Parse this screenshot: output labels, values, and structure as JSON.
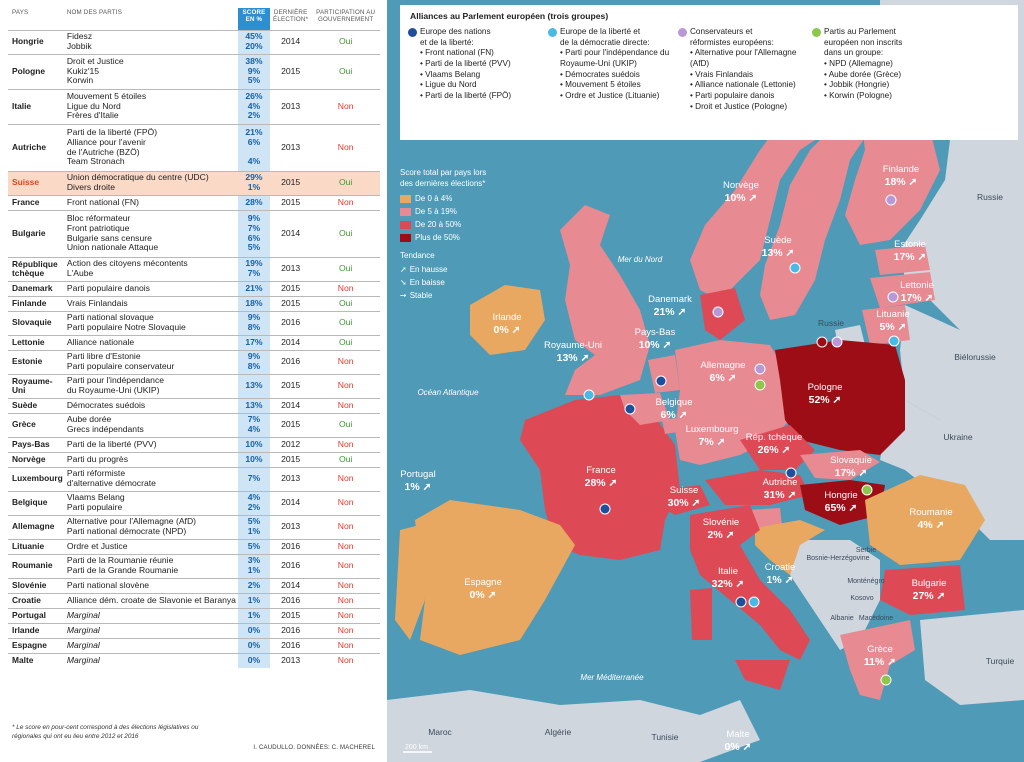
{
  "table": {
    "headers": {
      "pays": "PAYS",
      "partis": "NOM DES PARTIS",
      "score": "SCORE EN %",
      "election": "DERNIÈRE ÉLECTION*",
      "gouv": "PARTICIPATION AU GOUVERNEMENT"
    },
    "rows": [
      {
        "pays": "Hongrie",
        "partis": [
          "Fidesz",
          "Jobbik"
        ],
        "scores": [
          "45%",
          "20%"
        ],
        "annee": "2014",
        "gouv": "Oui",
        "h": 24
      },
      {
        "pays": "Pologne",
        "partis": [
          "Droit et Justice",
          "Kukiz'15",
          "Korwin"
        ],
        "scores": [
          "38%",
          "9%",
          "5%"
        ],
        "annee": "2015",
        "gouv": "Oui",
        "h": 35
      },
      {
        "pays": "Italie",
        "partis": [
          "Mouvement 5 étoiles",
          "Ligue du Nord",
          "Frères d'Italie"
        ],
        "scores": [
          "26%",
          "4%",
          "2%"
        ],
        "annee": "2013",
        "gouv": "Non",
        "h": 35
      },
      {
        "pays": "Autriche",
        "partis": [
          "Parti de la liberté (FPÖ)",
          "Alliance pour l'avenir",
          "de l'Autriche (BZÖ)",
          "Team Stronach"
        ],
        "scores": [
          "21%",
          "6%",
          "",
          "4%"
        ],
        "annee": "2013",
        "gouv": "Non",
        "h": 47
      },
      {
        "pays": "Suisse",
        "partis": [
          "Union démocratique du centre (UDC)",
          "Divers droite"
        ],
        "scores": [
          "29%",
          "1%"
        ],
        "annee": "2015",
        "gouv": "Oui",
        "h": 24,
        "hl": true
      },
      {
        "pays": "France",
        "partis": [
          "Front national (FN)"
        ],
        "scores": [
          "28%"
        ],
        "annee": "2015",
        "gouv": "Non",
        "h": 15
      },
      {
        "pays": "Bulgarie",
        "partis": [
          "Bloc réformateur",
          "Front patriotique",
          "Bulgarie sans censure",
          "Union nationale Attaque"
        ],
        "scores": [
          "9%",
          "7%",
          "6%",
          "5%"
        ],
        "annee": "2014",
        "gouv": "Oui",
        "h": 47
      },
      {
        "pays": "République tchèque",
        "partis": [
          "Action des citoyens mécontents",
          "L'Aube"
        ],
        "scores": [
          "19%",
          "7%"
        ],
        "annee": "2013",
        "gouv": "Oui",
        "h": 24
      },
      {
        "pays": "Danemark",
        "partis": [
          "Parti populaire danois"
        ],
        "scores": [
          "21%"
        ],
        "annee": "2015",
        "gouv": "Non",
        "h": 15
      },
      {
        "pays": "Finlande",
        "partis": [
          "Vrais Finlandais"
        ],
        "scores": [
          "18%"
        ],
        "annee": "2015",
        "gouv": "Oui",
        "h": 15
      },
      {
        "pays": "Slovaquie",
        "partis": [
          "Parti national slovaque",
          "Parti populaire Notre Slovaquie"
        ],
        "scores": [
          "9%",
          "8%"
        ],
        "annee": "2016",
        "gouv": "Oui",
        "h": 24
      },
      {
        "pays": "Lettonie",
        "partis": [
          "Alliance nationale"
        ],
        "scores": [
          "17%"
        ],
        "annee": "2014",
        "gouv": "Oui",
        "h": 15
      },
      {
        "pays": "Estonie",
        "partis": [
          "Parti libre d'Estonie",
          "Parti populaire conservateur"
        ],
        "scores": [
          "9%",
          "8%"
        ],
        "annee": "2016",
        "gouv": "Non",
        "h": 24
      },
      {
        "pays": "Royaume-Uni",
        "partis": [
          "Parti pour l'indépendance",
          "du Royaume-Uni (UKIP)"
        ],
        "scores": [
          "13%"
        ],
        "annee": "2015",
        "gouv": "Non",
        "h": 24
      },
      {
        "pays": "Suède",
        "partis": [
          "Démocrates suédois"
        ],
        "scores": [
          "13%"
        ],
        "annee": "2014",
        "gouv": "Non",
        "h": 15
      },
      {
        "pays": "Grèce",
        "partis": [
          "Aube dorée",
          "Grecs indépendants"
        ],
        "scores": [
          "7%",
          "4%"
        ],
        "annee": "2015",
        "gouv": "Oui",
        "h": 24
      },
      {
        "pays": "Pays-Bas",
        "partis": [
          "Parti de la liberté (PVV)"
        ],
        "scores": [
          "10%"
        ],
        "annee": "2012",
        "gouv": "Non",
        "h": 15
      },
      {
        "pays": "Norvège",
        "partis": [
          "Parti du progrès"
        ],
        "scores": [
          "10%"
        ],
        "annee": "2015",
        "gouv": "Oui",
        "h": 15
      },
      {
        "pays": "Luxembourg",
        "partis": [
          "Parti réformiste",
          "d'alternative démocrate"
        ],
        "scores": [
          "7%"
        ],
        "annee": "2013",
        "gouv": "Non",
        "h": 24
      },
      {
        "pays": "Belgique",
        "partis": [
          "Vlaams Belang",
          "Parti populaire"
        ],
        "scores": [
          "4%",
          "2%"
        ],
        "annee": "2014",
        "gouv": "Non",
        "h": 24
      },
      {
        "pays": "Allemagne",
        "partis": [
          "Alternative pour l'Allemagne (AfD)",
          "Parti national démocrate (NPD)"
        ],
        "scores": [
          "5%",
          "1%"
        ],
        "annee": "2013",
        "gouv": "Non",
        "h": 24
      },
      {
        "pays": "Lituanie",
        "partis": [
          "Ordre et Justice"
        ],
        "scores": [
          "5%"
        ],
        "annee": "2016",
        "gouv": "Non",
        "h": 15
      },
      {
        "pays": "Roumanie",
        "partis": [
          "Parti de la Roumanie réunie",
          "Parti de la Grande Roumanie"
        ],
        "scores": [
          "3%",
          "1%"
        ],
        "annee": "2016",
        "gouv": "Non",
        "h": 24
      },
      {
        "pays": "Slovénie",
        "partis": [
          "Parti national slovène"
        ],
        "scores": [
          "2%"
        ],
        "annee": "2014",
        "gouv": "Non",
        "h": 15
      },
      {
        "pays": "Croatie",
        "partis": [
          "Alliance dém. croate de Slavonie et Baranya"
        ],
        "scores": [
          "1%"
        ],
        "annee": "2016",
        "gouv": "Non",
        "h": 15
      },
      {
        "pays": "Portugal",
        "partis": [
          "Marginal"
        ],
        "scores": [
          "1%"
        ],
        "annee": "2015",
        "gouv": "Non",
        "h": 15,
        "marg": true
      },
      {
        "pays": "Irlande",
        "partis": [
          "Marginal"
        ],
        "scores": [
          "0%"
        ],
        "annee": "2016",
        "gouv": "Non",
        "h": 15,
        "marg": true
      },
      {
        "pays": "Espagne",
        "partis": [
          "Marginal"
        ],
        "scores": [
          "0%"
        ],
        "annee": "2016",
        "gouv": "Non",
        "h": 15,
        "marg": true
      },
      {
        "pays": "Malte",
        "partis": [
          "Marginal"
        ],
        "scores": [
          "0%"
        ],
        "annee": "2013",
        "gouv": "Non",
        "h": 15,
        "marg": true
      }
    ]
  },
  "footnote": "* Le score en pour-cent correspond à des élections législatives ou régionales qui ont eu lieu entre 2012 et 2016",
  "credit": "I. CAUDULLO. DONNÉES: C. MACHEREL",
  "legend": {
    "title": "Alliances au Parlement européen (trois groupes)",
    "groups": [
      {
        "title": [
          "Europe des nations",
          "et de la liberté:"
        ],
        "color": "#1e4f9c",
        "items": [
          "Front national (FN)",
          "Parti de la liberté (PVV)",
          "Vlaams Belang",
          "Ligue du Nord",
          "Parti de la liberté (FPÖ)"
        ]
      },
      {
        "title": [
          "Europe de la liberté et",
          "de la démocratie directe:"
        ],
        "color": "#49b9e6",
        "items": [
          "Parti pour l'indépendance du Royaume-Uni (UKIP)",
          "Démocrates suédois",
          "Mouvement 5 étoiles",
          "Ordre et Justice (Lituanie)"
        ]
      },
      {
        "title": [
          "Conservateurs et",
          "réformistes européens:"
        ],
        "color": "#b899d6",
        "items": [
          "Alternative pour l'Allemagne (AfD)",
          "Vrais Finlandais",
          "Alliance nationale (Lettonie)",
          "Parti populaire danois",
          "Droit et Justice (Pologne)"
        ]
      },
      {
        "title": [
          "Partis au Parlement",
          "européen non inscrits",
          "dans un groupe:"
        ],
        "color": "#8cc74a",
        "items": [
          "NPD (Allemagne)",
          "Aube dorée (Grèce)",
          "Jobbik (Hongrie)",
          "Korwin (Pologne)"
        ]
      }
    ],
    "score_title": [
      "Score total par pays lors",
      "des dernières élections*"
    ],
    "score_classes": [
      {
        "label": "De 0 à 4%",
        "color": "#e8a861"
      },
      {
        "label": "De 5 à 19%",
        "color": "#e88a92"
      },
      {
        "label": "De 20 à 50%",
        "color": "#dd4a56"
      },
      {
        "label": "Plus de 50%",
        "color": "#9c0d16"
      }
    ],
    "trend_title": "Tendance",
    "trends": [
      "En hausse",
      "En baisse",
      "Stable"
    ]
  },
  "map": {
    "colors": {
      "sea": "#4e9ab7",
      "land_other": "#cfd6de",
      "low": "#e8a861",
      "mid": "#e88a92",
      "high": "#dd4a56",
      "top": "#9c0d16"
    },
    "labels": [
      {
        "name": "Finlande",
        "val": "18%"
      },
      {
        "name": "Norvège",
        "val": "10%"
      },
      {
        "name": "Suède",
        "val": "13%"
      },
      {
        "name": "Estonie",
        "val": "17%"
      },
      {
        "name": "Lettonie",
        "val": "17%"
      },
      {
        "name": "Lituanie",
        "val": "5%"
      },
      {
        "name": "Danemark",
        "val": "21%"
      },
      {
        "name": "Irlande",
        "val": "0%"
      },
      {
        "name": "Royaume-Uni",
        "val": "13%"
      },
      {
        "name": "Pays-Bas",
        "val": "10%"
      },
      {
        "name": "Allemagne",
        "val": "6%"
      },
      {
        "name": "Pologne",
        "val": "52%"
      },
      {
        "name": "Belgique",
        "val": "6%"
      },
      {
        "name": "Luxembourg",
        "val": "7%"
      },
      {
        "name": "Rép. tchèque",
        "val": "26%"
      },
      {
        "name": "Slovaquie",
        "val": "17%"
      },
      {
        "name": "Autriche",
        "val": "31%"
      },
      {
        "name": "Hongrie",
        "val": "65%"
      },
      {
        "name": "France",
        "val": "28%"
      },
      {
        "name": "Suisse",
        "val": "30%"
      },
      {
        "name": "Slovénie",
        "val": "2%"
      },
      {
        "name": "Roumanie",
        "val": "4%"
      },
      {
        "name": "Portugal",
        "val": "1%"
      },
      {
        "name": "Espagne",
        "val": "0%"
      },
      {
        "name": "Italie",
        "val": "32%"
      },
      {
        "name": "Croatie",
        "val": "1%"
      },
      {
        "name": "Bulgarie",
        "val": "27%"
      },
      {
        "name": "Grèce",
        "val": "11%"
      },
      {
        "name": "Malte",
        "val": "0%"
      }
    ],
    "others": [
      "Russie",
      "Biélorussie",
      "Ukraine",
      "Moldavie",
      "Serbie",
      "Bosnie-Herzégovine",
      "Monténégro",
      "Kosovo",
      "Albanie",
      "Macédoine",
      "Turquie",
      "Maroc",
      "Algérie",
      "Tunisie",
      "Russie"
    ],
    "seas": [
      "Mer du Nord",
      "Océan Atlantique",
      "Mer Méditerranée"
    ],
    "scale": "200 km"
  }
}
